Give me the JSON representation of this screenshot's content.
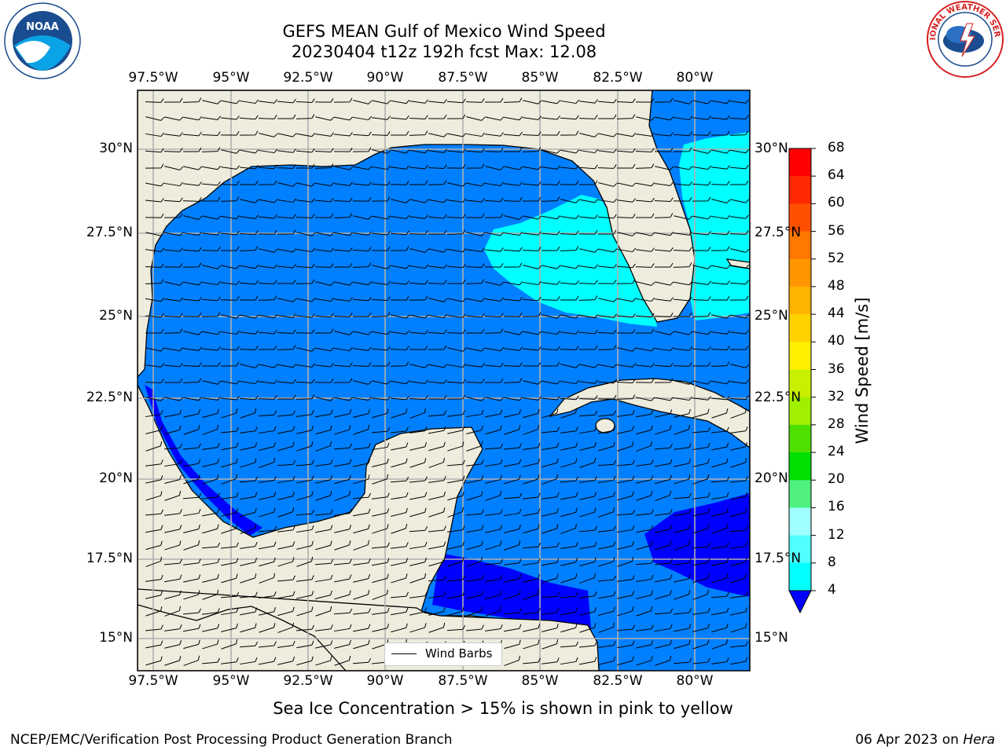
{
  "title": {
    "line1": "GEFS MEAN Gulf of Mexico Wind Speed",
    "line2": "20230404 t12z 192h fcst   Max: 12.08"
  },
  "axes": {
    "lon_labels": [
      "97.5°W",
      "95°W",
      "92.5°W",
      "90°W",
      "87.5°W",
      "85°W",
      "82.5°W",
      "80°W"
    ],
    "lat_labels": [
      "30°N",
      "27.5°N",
      "25°N",
      "22.5°N",
      "20°N",
      "17.5°N",
      "15°N"
    ],
    "lat_labels_right": [
      "30°N",
      "27.5°N",
      "25°N",
      "22.5°N",
      "20°N",
      "17.5°N",
      "15°N"
    ]
  },
  "legend": {
    "label": "Wind Barbs"
  },
  "colorbar": {
    "title": "Wind Speed [m/s]",
    "ticks": [
      "68",
      "64",
      "60",
      "56",
      "52",
      "48",
      "44",
      "40",
      "36",
      "32",
      "28",
      "24",
      "20",
      "16",
      "12",
      "8",
      "4"
    ],
    "colors": [
      "#ff0000",
      "#ff2800",
      "#ff5000",
      "#ff7800",
      "#ff9600",
      "#ffb400",
      "#ffd200",
      "#fff000",
      "#e6f000",
      "#c8f000",
      "#a0f000",
      "#4ee000",
      "#00e000",
      "#50f080",
      "#a0ffff",
      "#50ffff",
      "#00ffff",
      "#0080ff",
      "#0000ff"
    ]
  },
  "caption": "Sea Ice Concentration > 15% is shown in pink to yellow",
  "footer": {
    "left": "NCEP/EMC/Verification Post Processing Product Generation Branch",
    "right_date": "06 Apr 2023 on ",
    "right_machine": "Hera"
  },
  "logos": {
    "left": "NOAA",
    "right": "NATIONAL WEATHER SERVICE"
  },
  "map_colors": {
    "land": "#eeecdc",
    "water_4_8": "#0080ff",
    "water_8_12": "#00ffff",
    "water_lt4": "#0000ff",
    "grid": "#b0b0b0"
  }
}
